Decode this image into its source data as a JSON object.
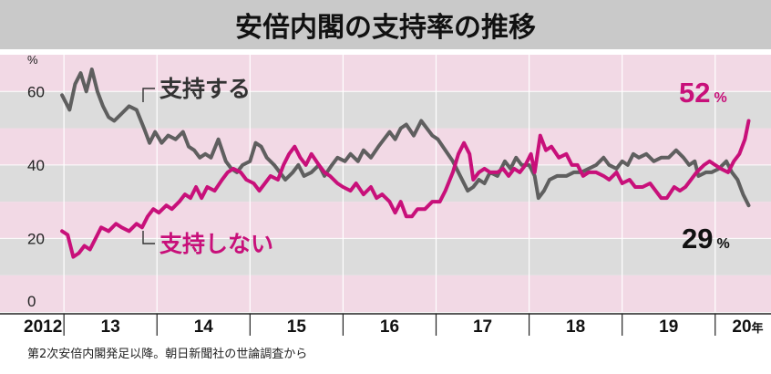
{
  "title": "安倍内閣の支持率の推移",
  "source_note": "第2次安倍内閣発足以降。朝日新聞社の世論調査から",
  "colors": {
    "support": "#5f5f5f",
    "oppose": "#c8107a",
    "band_gray": "#dcdcdc",
    "band_pink": "#f2d9e5",
    "title_bg": "#c9c9c9"
  },
  "chart_data": {
    "type": "line",
    "title": "安倍内閣の支持率の推移",
    "y_unit": "%",
    "ylim": [
      0,
      70
    ],
    "yticks": [
      0,
      20,
      40,
      60
    ],
    "xlim": [
      2012.92,
      2020.6
    ],
    "year_labels": [
      {
        "label": "2012",
        "x": 2012.92
      },
      {
        "label": "13",
        "x": 2013.5
      },
      {
        "label": "14",
        "x": 2014.5
      },
      {
        "label": "15",
        "x": 2015.5
      },
      {
        "label": "16",
        "x": 2016.5
      },
      {
        "label": "17",
        "x": 2017.5
      },
      {
        "label": "18",
        "x": 2018.5
      },
      {
        "label": "19",
        "x": 2019.5
      },
      {
        "label": "20",
        "x": 2020.35,
        "suffix": "年"
      }
    ],
    "year_dividers": [
      2013,
      2014,
      2015,
      2016,
      2017,
      2018,
      2019,
      2020
    ],
    "series": [
      {
        "name": "支持する",
        "end_value": 29,
        "end_unit": "%",
        "color": "#5f5f5f",
        "points": [
          [
            2012.98,
            59
          ],
          [
            2013.06,
            55
          ],
          [
            2013.12,
            62
          ],
          [
            2013.18,
            65
          ],
          [
            2013.24,
            60
          ],
          [
            2013.3,
            66
          ],
          [
            2013.36,
            60
          ],
          [
            2013.42,
            56
          ],
          [
            2013.48,
            53
          ],
          [
            2013.54,
            52
          ],
          [
            2013.62,
            54
          ],
          [
            2013.7,
            56
          ],
          [
            2013.78,
            55
          ],
          [
            2013.86,
            50
          ],
          [
            2013.92,
            46
          ],
          [
            2013.98,
            49
          ],
          [
            2014.05,
            46
          ],
          [
            2014.12,
            48
          ],
          [
            2014.2,
            47
          ],
          [
            2014.28,
            49
          ],
          [
            2014.34,
            45
          ],
          [
            2014.4,
            44
          ],
          [
            2014.46,
            42
          ],
          [
            2014.52,
            43
          ],
          [
            2014.58,
            42
          ],
          [
            2014.66,
            47
          ],
          [
            2014.74,
            41
          ],
          [
            2014.8,
            39
          ],
          [
            2014.86,
            38
          ],
          [
            2014.92,
            40
          ],
          [
            2015.0,
            41
          ],
          [
            2015.06,
            46
          ],
          [
            2015.12,
            45
          ],
          [
            2015.18,
            42
          ],
          [
            2015.26,
            40
          ],
          [
            2015.32,
            38
          ],
          [
            2015.38,
            36
          ],
          [
            2015.46,
            38
          ],
          [
            2015.52,
            40
          ],
          [
            2015.58,
            37
          ],
          [
            2015.66,
            38
          ],
          [
            2015.74,
            40
          ],
          [
            2015.8,
            37
          ],
          [
            2015.88,
            40
          ],
          [
            2015.94,
            42
          ],
          [
            2016.02,
            41
          ],
          [
            2016.08,
            43
          ],
          [
            2016.16,
            41
          ],
          [
            2016.22,
            44
          ],
          [
            2016.3,
            42
          ],
          [
            2016.38,
            45
          ],
          [
            2016.44,
            47
          ],
          [
            2016.5,
            49
          ],
          [
            2016.56,
            47
          ],
          [
            2016.62,
            50
          ],
          [
            2016.68,
            51
          ],
          [
            2016.76,
            48
          ],
          [
            2016.84,
            52
          ],
          [
            2016.9,
            50
          ],
          [
            2016.96,
            48
          ],
          [
            2017.02,
            47
          ],
          [
            2017.1,
            44
          ],
          [
            2017.18,
            41
          ],
          [
            2017.26,
            37
          ],
          [
            2017.34,
            33
          ],
          [
            2017.4,
            34
          ],
          [
            2017.46,
            36
          ],
          [
            2017.52,
            35
          ],
          [
            2017.58,
            38
          ],
          [
            2017.66,
            37
          ],
          [
            2017.74,
            41
          ],
          [
            2017.8,
            39
          ],
          [
            2017.86,
            42
          ],
          [
            2017.92,
            40
          ],
          [
            2018.0,
            40
          ],
          [
            2018.06,
            37
          ],
          [
            2018.1,
            31
          ],
          [
            2018.16,
            33
          ],
          [
            2018.22,
            36
          ],
          [
            2018.3,
            37
          ],
          [
            2018.4,
            37
          ],
          [
            2018.48,
            38
          ],
          [
            2018.56,
            38
          ],
          [
            2018.64,
            39
          ],
          [
            2018.72,
            40
          ],
          [
            2018.8,
            42
          ],
          [
            2018.86,
            40
          ],
          [
            2018.94,
            39
          ],
          [
            2019.0,
            41
          ],
          [
            2019.06,
            40
          ],
          [
            2019.12,
            43
          ],
          [
            2019.18,
            42
          ],
          [
            2019.26,
            43
          ],
          [
            2019.34,
            41
          ],
          [
            2019.42,
            42
          ],
          [
            2019.5,
            42
          ],
          [
            2019.58,
            44
          ],
          [
            2019.66,
            42
          ],
          [
            2019.72,
            40
          ],
          [
            2019.78,
            41
          ],
          [
            2019.82,
            37
          ],
          [
            2019.9,
            38
          ],
          [
            2019.96,
            38
          ],
          [
            2020.04,
            39
          ],
          [
            2020.12,
            41
          ],
          [
            2020.18,
            38
          ],
          [
            2020.24,
            36
          ],
          [
            2020.3,
            32
          ],
          [
            2020.36,
            29
          ]
        ]
      },
      {
        "name": "支持しない",
        "end_value": 52,
        "end_unit": "%",
        "color": "#c8107a",
        "points": [
          [
            2012.98,
            22
          ],
          [
            2013.04,
            21
          ],
          [
            2013.1,
            15
          ],
          [
            2013.16,
            16
          ],
          [
            2013.22,
            18
          ],
          [
            2013.28,
            17
          ],
          [
            2013.34,
            20
          ],
          [
            2013.4,
            23
          ],
          [
            2013.48,
            22
          ],
          [
            2013.56,
            24
          ],
          [
            2013.62,
            23
          ],
          [
            2013.7,
            22
          ],
          [
            2013.78,
            24
          ],
          [
            2013.84,
            23
          ],
          [
            2013.9,
            26
          ],
          [
            2013.96,
            28
          ],
          [
            2014.02,
            27
          ],
          [
            2014.1,
            29
          ],
          [
            2014.16,
            28
          ],
          [
            2014.24,
            30
          ],
          [
            2014.3,
            32
          ],
          [
            2014.36,
            31
          ],
          [
            2014.42,
            34
          ],
          [
            2014.48,
            31
          ],
          [
            2014.54,
            34
          ],
          [
            2014.62,
            33
          ],
          [
            2014.7,
            36
          ],
          [
            2014.76,
            38
          ],
          [
            2014.82,
            39
          ],
          [
            2014.9,
            38
          ],
          [
            2014.96,
            36
          ],
          [
            2015.04,
            35
          ],
          [
            2015.1,
            33
          ],
          [
            2015.16,
            35
          ],
          [
            2015.22,
            37
          ],
          [
            2015.3,
            36
          ],
          [
            2015.36,
            40
          ],
          [
            2015.42,
            43
          ],
          [
            2015.48,
            45
          ],
          [
            2015.54,
            42
          ],
          [
            2015.6,
            40
          ],
          [
            2015.66,
            43
          ],
          [
            2015.74,
            40
          ],
          [
            2015.8,
            38
          ],
          [
            2015.86,
            37
          ],
          [
            2015.94,
            35
          ],
          [
            2016.0,
            34
          ],
          [
            2016.08,
            33
          ],
          [
            2016.14,
            35
          ],
          [
            2016.22,
            32
          ],
          [
            2016.3,
            34
          ],
          [
            2016.36,
            31
          ],
          [
            2016.42,
            32
          ],
          [
            2016.5,
            30
          ],
          [
            2016.56,
            27
          ],
          [
            2016.62,
            30
          ],
          [
            2016.68,
            26
          ],
          [
            2016.74,
            26
          ],
          [
            2016.8,
            28
          ],
          [
            2016.88,
            28
          ],
          [
            2016.96,
            30
          ],
          [
            2017.04,
            30
          ],
          [
            2017.1,
            33
          ],
          [
            2017.18,
            38
          ],
          [
            2017.24,
            43
          ],
          [
            2017.3,
            46
          ],
          [
            2017.36,
            43
          ],
          [
            2017.4,
            36
          ],
          [
            2017.46,
            38
          ],
          [
            2017.52,
            39
          ],
          [
            2017.58,
            38
          ],
          [
            2017.66,
            38
          ],
          [
            2017.72,
            39
          ],
          [
            2017.78,
            37
          ],
          [
            2017.84,
            39
          ],
          [
            2017.9,
            38
          ],
          [
            2017.96,
            40
          ],
          [
            2018.02,
            43
          ],
          [
            2018.06,
            38
          ],
          [
            2018.12,
            48
          ],
          [
            2018.18,
            44
          ],
          [
            2018.24,
            45
          ],
          [
            2018.32,
            42
          ],
          [
            2018.4,
            43
          ],
          [
            2018.46,
            40
          ],
          [
            2018.52,
            40
          ],
          [
            2018.58,
            37
          ],
          [
            2018.64,
            38
          ],
          [
            2018.72,
            38
          ],
          [
            2018.8,
            37
          ],
          [
            2018.86,
            36
          ],
          [
            2018.94,
            38
          ],
          [
            2019.0,
            35
          ],
          [
            2019.08,
            36
          ],
          [
            2019.14,
            34
          ],
          [
            2019.22,
            34
          ],
          [
            2019.3,
            35
          ],
          [
            2019.36,
            33
          ],
          [
            2019.42,
            31
          ],
          [
            2019.48,
            31
          ],
          [
            2019.56,
            34
          ],
          [
            2019.62,
            33
          ],
          [
            2019.68,
            34
          ],
          [
            2019.74,
            36
          ],
          [
            2019.8,
            38
          ],
          [
            2019.88,
            40
          ],
          [
            2019.94,
            41
          ],
          [
            2020.0,
            40
          ],
          [
            2020.06,
            39
          ],
          [
            2020.14,
            38
          ],
          [
            2020.2,
            41
          ],
          [
            2020.26,
            43
          ],
          [
            2020.32,
            47
          ],
          [
            2020.36,
            52
          ]
        ]
      }
    ]
  }
}
